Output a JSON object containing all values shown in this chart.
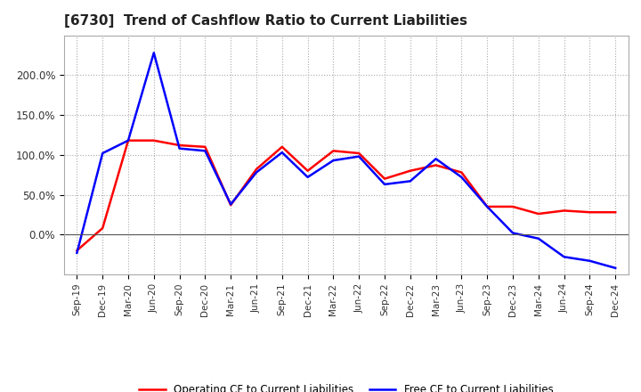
{
  "title": "[6730]  Trend of Cashflow Ratio to Current Liabilities",
  "x_labels": [
    "Sep-19",
    "Dec-19",
    "Mar-20",
    "Jun-20",
    "Sep-20",
    "Dec-20",
    "Mar-21",
    "Jun-21",
    "Sep-21",
    "Dec-21",
    "Mar-22",
    "Jun-22",
    "Sep-22",
    "Dec-22",
    "Mar-23",
    "Jun-23",
    "Sep-23",
    "Dec-23",
    "Mar-24",
    "Jun-24",
    "Sep-24",
    "Dec-24"
  ],
  "operating_cf": [
    -0.2,
    0.08,
    1.18,
    1.18,
    1.12,
    1.1,
    0.37,
    0.82,
    1.1,
    0.8,
    1.05,
    1.02,
    0.7,
    0.8,
    0.87,
    0.78,
    0.35,
    0.35,
    0.26,
    0.3,
    0.28,
    0.28
  ],
  "free_cf": [
    -0.23,
    1.02,
    1.18,
    2.28,
    1.08,
    1.05,
    0.38,
    0.78,
    1.03,
    0.72,
    0.93,
    0.98,
    0.63,
    0.67,
    0.95,
    0.72,
    0.35,
    0.02,
    -0.05,
    -0.28,
    -0.33,
    -0.42
  ],
  "operating_color": "#FF0000",
  "free_color": "#0000FF",
  "background_color": "#FFFFFF",
  "grid_color": "#AAAAAA",
  "ylim_min": -0.5,
  "ylim_max": 2.5,
  "yticks": [
    0.0,
    0.5,
    1.0,
    1.5,
    2.0
  ],
  "ytick_labels": [
    "0.0%",
    "50.0%",
    "100.0%",
    "150.0%",
    "200.0%"
  ],
  "legend_operating": "Operating CF to Current Liabilities",
  "legend_free": "Free CF to Current Liabilities"
}
